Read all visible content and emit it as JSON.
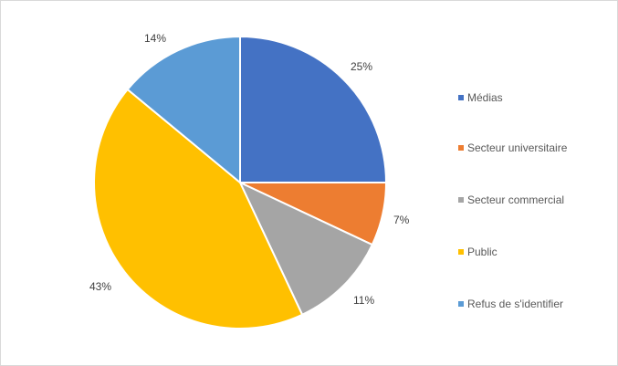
{
  "chart_data": {
    "type": "pie",
    "title": "",
    "categories": [
      "Médias",
      "Secteur universitaire",
      "Secteur commercial",
      "Public",
      "Refus de s'identifier"
    ],
    "values": [
      25,
      7,
      11,
      43,
      14
    ],
    "labels": [
      "25%",
      "7%",
      "11%",
      "43%",
      "14%"
    ],
    "colors": [
      "#4472c4",
      "#ed7d31",
      "#a5a5a5",
      "#ffc000",
      "#5b9bd5"
    ],
    "legend_position": "right",
    "start_angle": "12 o'clock, clockwise"
  },
  "legend": {
    "items": [
      {
        "label": "Médias",
        "color": "#4472c4"
      },
      {
        "label": "Secteur universitaire",
        "color": "#ed7d31"
      },
      {
        "label": "Secteur commercial",
        "color": "#a5a5a5"
      },
      {
        "label": "Public",
        "color": "#ffc000"
      },
      {
        "label": "Refus de s'identifier",
        "color": "#5b9bd5"
      }
    ]
  }
}
